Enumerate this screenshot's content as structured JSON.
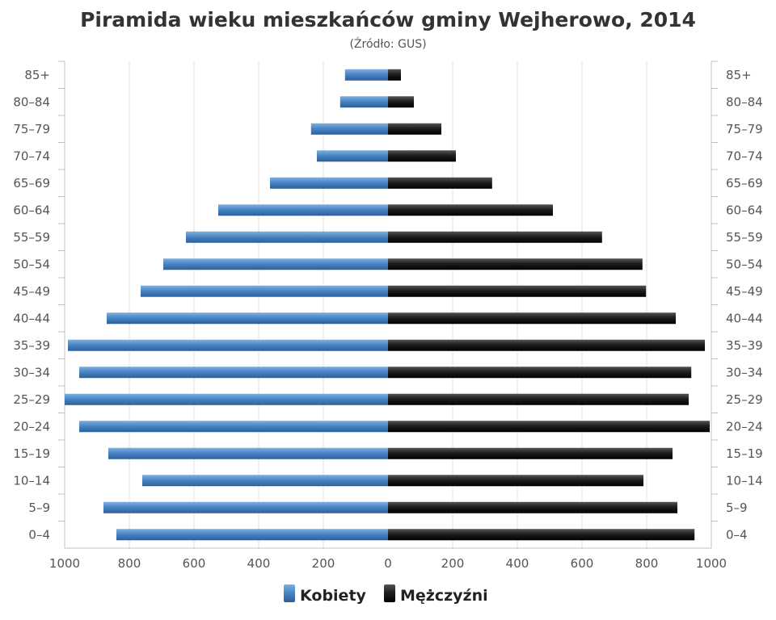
{
  "chart_data": {
    "type": "bar",
    "orientation": "horizontal-population-pyramid",
    "title": "Piramida wieku mieszkańców gminy Wejherowo, 2014",
    "subtitle": "(Źródło: GUS)",
    "categories": [
      "0–4",
      "5–9",
      "10–14",
      "15–19",
      "20–24",
      "25–29",
      "30–34",
      "35–39",
      "40–44",
      "45–49",
      "50–54",
      "55–59",
      "60–64",
      "65–69",
      "70–74",
      "75–79",
      "80–84",
      "85+"
    ],
    "series": [
      {
        "name": "Kobiety",
        "side": "left",
        "color": "#4a86c5",
        "values": [
          840,
          880,
          760,
          865,
          955,
          1000,
          955,
          990,
          870,
          765,
          695,
          625,
          525,
          365,
          220,
          238,
          148,
          133
        ]
      },
      {
        "name": "Mężczyźni",
        "side": "right",
        "color": "#1a1a1a",
        "values": [
          948,
          895,
          790,
          880,
          995,
          930,
          938,
          980,
          890,
          798,
          787,
          662,
          510,
          322,
          210,
          165,
          80,
          40
        ]
      }
    ],
    "x_ticks": [
      "1000",
      "800",
      "600",
      "400",
      "200",
      "0",
      "200",
      "400",
      "600",
      "800",
      "1000"
    ],
    "xlim": [
      -1000,
      1000
    ],
    "grid": "vertical",
    "legend_position": "bottom-center"
  }
}
